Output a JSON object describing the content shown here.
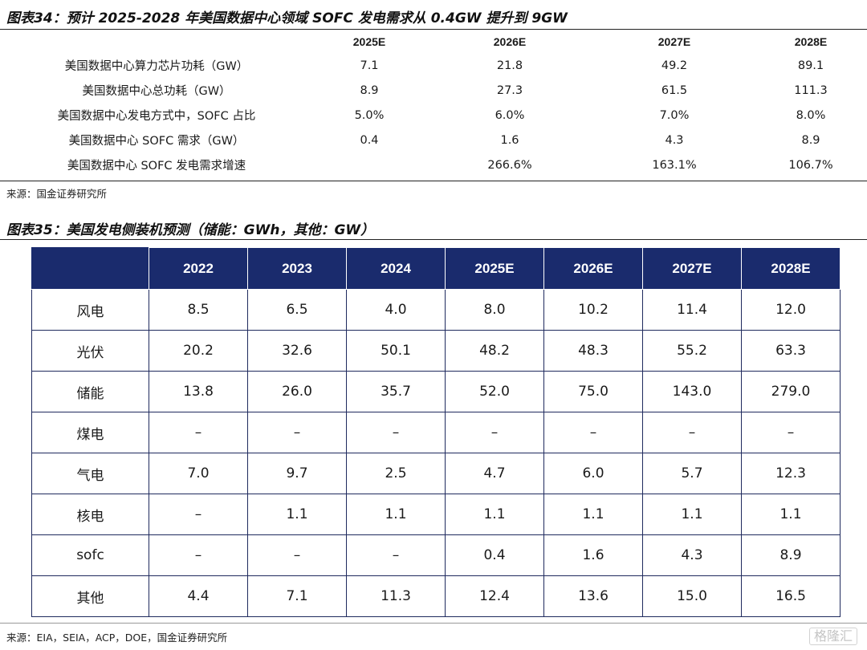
{
  "figure1": {
    "title": "图表34：预计 2025-2028 年美国数据中心领域 SOFC 发电需求从 0.4GW 提升到 9GW",
    "columns": [
      "2025E",
      "2026E",
      "2027E",
      "2028E"
    ],
    "rows": [
      {
        "label": "美国数据中心算力芯片功耗（GW）",
        "values": [
          "7.1",
          "21.8",
          "49.2",
          "89.1"
        ]
      },
      {
        "label": "美国数据中心总功耗（GW）",
        "values": [
          "8.9",
          "27.3",
          "61.5",
          "111.3"
        ]
      },
      {
        "label": "美国数据中心发电方式中，SOFC 占比",
        "values": [
          "5.0%",
          "6.0%",
          "7.0%",
          "8.0%"
        ]
      },
      {
        "label": "美国数据中心 SOFC 需求（GW）",
        "values": [
          "0.4",
          "1.6",
          "4.3",
          "8.9"
        ]
      },
      {
        "label": "美国数据中心 SOFC 发电需求增速",
        "values": [
          "",
          "266.6%",
          "163.1%",
          "106.7%"
        ]
      }
    ],
    "source": "来源：国金证券研究所"
  },
  "figure2": {
    "title": "图表35：美国发电侧装机预测（储能：GWh，其他：GW）",
    "columns": [
      "2022",
      "2023",
      "2024",
      "2025E",
      "2026E",
      "2027E",
      "2028E"
    ],
    "rows": [
      {
        "label": "风电",
        "values": [
          "8.5",
          "6.5",
          "4.0",
          "8.0",
          "10.2",
          "11.4",
          "12.0"
        ]
      },
      {
        "label": "光伏",
        "values": [
          "20.2",
          "32.6",
          "50.1",
          "48.2",
          "48.3",
          "55.2",
          "63.3"
        ]
      },
      {
        "label": "储能",
        "values": [
          "13.8",
          "26.0",
          "35.7",
          "52.0",
          "75.0",
          "143.0",
          "279.0"
        ]
      },
      {
        "label": "煤电",
        "values": [
          "–",
          "–",
          "–",
          "–",
          "–",
          "–",
          "–"
        ]
      },
      {
        "label": "气电",
        "values": [
          "7.0",
          "9.7",
          "2.5",
          "4.7",
          "6.0",
          "5.7",
          "12.3"
        ]
      },
      {
        "label": "核电",
        "values": [
          "–",
          "1.1",
          "1.1",
          "1.1",
          "1.1",
          "1.1",
          "1.1"
        ]
      },
      {
        "label": "sofc",
        "values": [
          "–",
          "–",
          "–",
          "0.4",
          "1.6",
          "4.3",
          "8.9"
        ]
      },
      {
        "label": "其他",
        "values": [
          "4.4",
          "7.1",
          "11.3",
          "12.4",
          "13.6",
          "15.0",
          "16.5"
        ]
      }
    ],
    "source": "来源：EIA，SEIA，ACP，DOE，国金证券研究所"
  },
  "watermark": "格隆汇"
}
